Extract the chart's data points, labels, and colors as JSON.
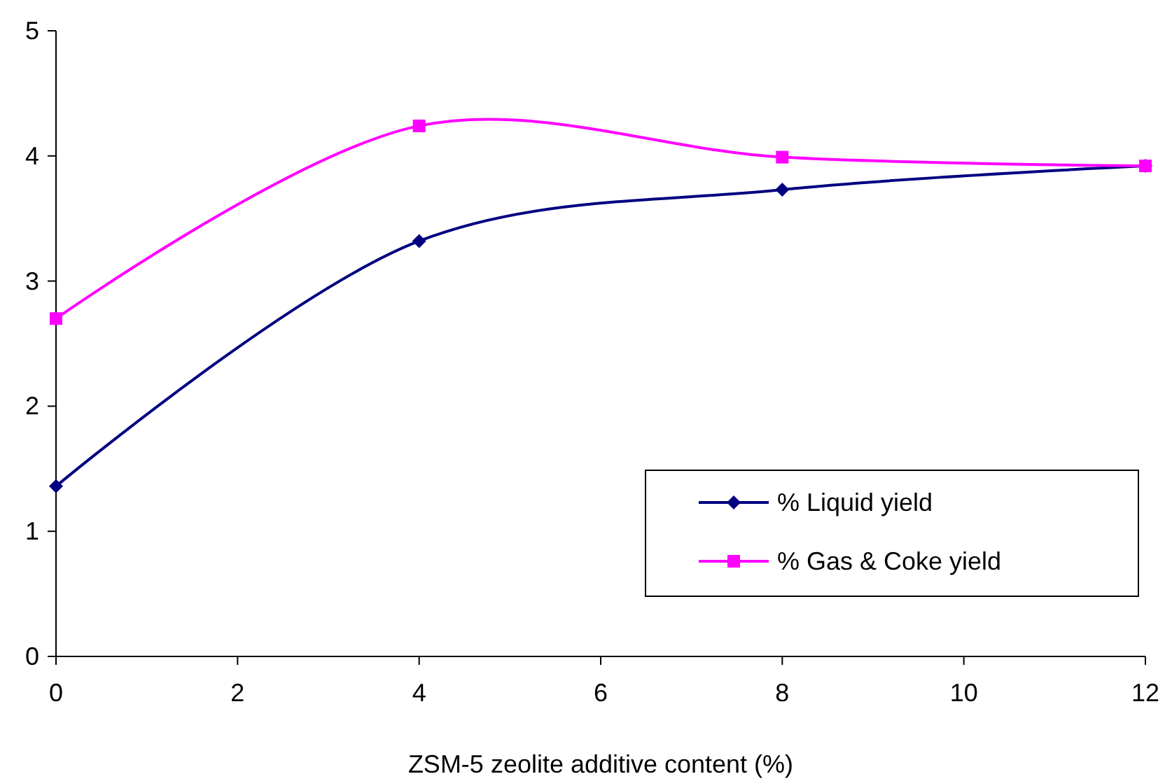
{
  "chart_data": {
    "type": "line",
    "xlabel": "ZSM-5 zeolite additive content (%)",
    "x": [
      0,
      4,
      8,
      12
    ],
    "series": [
      {
        "name": "% Liquid yield",
        "color": "#000080",
        "values": [
          1.36,
          3.32,
          3.73,
          3.92
        ],
        "marker": "diamond"
      },
      {
        "name": "% Gas & Coke yield",
        "color": "#ff00ff",
        "values": [
          2.7,
          4.24,
          3.99,
          3.92
        ],
        "marker": "square"
      }
    ],
    "xlim": [
      0,
      12
    ],
    "xticks": [
      0,
      2,
      4,
      6,
      8,
      10,
      12
    ],
    "ylim": [
      0,
      5
    ],
    "yticks": [
      0,
      1,
      2,
      3,
      4,
      5
    ],
    "grid": false,
    "legend": "bottom right",
    "line_style": "solid"
  }
}
